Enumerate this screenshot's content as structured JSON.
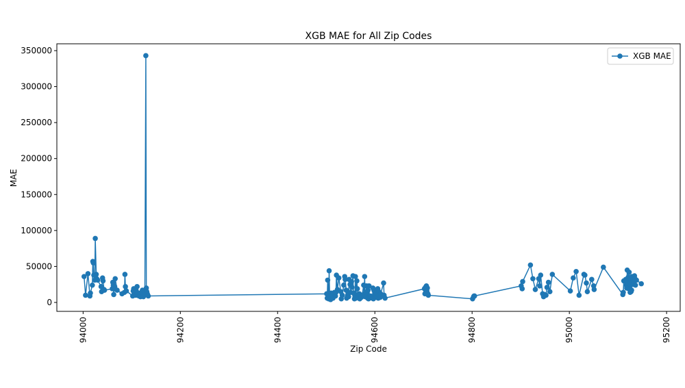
{
  "chart_data": {
    "type": "line",
    "title": "XGB MAE for All Zip Codes",
    "x_label": "Zip Code",
    "y_label": "MAE",
    "legend": "upper right",
    "xlim": [
      93946,
      95228
    ],
    "xticks": [
      94000,
      94200,
      94400,
      94600,
      94800,
      95000,
      95200
    ],
    "ylim": [
      -12400,
      359500
    ],
    "yticks": [
      0,
      50000,
      100000,
      150000,
      200000,
      250000,
      300000,
      350000
    ],
    "series": [
      {
        "name": "XGB MAE",
        "color": "#1f77b4",
        "x": [
          94002,
          94005,
          94010,
          94014,
          94015,
          94019,
          94020,
          94021,
          94022,
          94024,
          94025,
          94027,
          94028,
          94030,
          94037,
          94038,
          94040,
          94041,
          94043,
          94044,
          94060,
          94061,
          94062,
          94063,
          94065,
          94066,
          94070,
          94080,
          94085,
          94086,
          94087,
          94089,
          94102,
          94103,
          94104,
          94105,
          94107,
          94108,
          94109,
          94110,
          94111,
          94112,
          94114,
          94115,
          94116,
          94117,
          94118,
          94121,
          94122,
          94123,
          94124,
          94127,
          94129,
          94130,
          94131,
          94132,
          94133,
          94134,
          94501,
          94502,
          94503,
          94505,
          94506,
          94507,
          94509,
          94510,
          94513,
          94514,
          94517,
          94518,
          94519,
          94520,
          94521,
          94523,
          94526,
          94530,
          94531,
          94533,
          94536,
          94538,
          94539,
          94541,
          94542,
          94544,
          94545,
          94546,
          94547,
          94549,
          94550,
          94551,
          94552,
          94553,
          94555,
          94556,
          94558,
          94559,
          94560,
          94561,
          94563,
          94564,
          94565,
          94566,
          94568,
          94569,
          94571,
          94572,
          94574,
          94577,
          94578,
          94579,
          94580,
          94582,
          94583,
          94585,
          94586,
          94587,
          94588,
          94589,
          94590,
          94591,
          94595,
          94596,
          94597,
          94598,
          94601,
          94602,
          94603,
          94605,
          94606,
          94607,
          94608,
          94609,
          94610,
          94611,
          94612,
          94618,
          94619,
          94621,
          94702,
          94703,
          94704,
          94705,
          94706,
          94707,
          94708,
          94709,
          94710,
          94801,
          94803,
          94804,
          94805,
          94901,
          94903,
          94904,
          94920,
          94925,
          94930,
          94937,
          94939,
          94941,
          94945,
          94947,
          94949,
          94952,
          94954,
          94957,
          94960,
          94965,
          95002,
          95008,
          95014,
          95020,
          95030,
          95032,
          95035,
          95037,
          95046,
          95050,
          95051,
          95070,
          95110,
          95111,
          95112,
          95116,
          95117,
          95118,
          95119,
          95120,
          95121,
          95122,
          95123,
          95124,
          95125,
          95126,
          95127,
          95128,
          95129,
          95130,
          95131,
          95132,
          95133,
          95134,
          95135,
          95136,
          95138,
          95148
        ],
        "values": [
          36000,
          10000,
          40000,
          9000,
          13000,
          24000,
          57000,
          55000,
          38000,
          31000,
          89000,
          39000,
          33000,
          31000,
          22000,
          15000,
          34000,
          30000,
          18000,
          17000,
          19000,
          28000,
          24000,
          11000,
          22000,
          33000,
          17000,
          12000,
          14000,
          39000,
          22000,
          16000,
          9000,
          16000,
          19000,
          12000,
          14000,
          10000,
          17000,
          11000,
          22000,
          10000,
          13000,
          9000,
          12000,
          11000,
          8000,
          15000,
          17000,
          13000,
          8000,
          12000,
          343000,
          20000,
          15000,
          12000,
          10000,
          9000,
          12000,
          6000,
          31000,
          5000,
          44000,
          10000,
          4000,
          13000,
          11000,
          6000,
          14000,
          12000,
          9000,
          14000,
          38000,
          18000,
          34000,
          15000,
          5000,
          10000,
          24000,
          36000,
          32000,
          17000,
          6000,
          10000,
          13000,
          8000,
          32000,
          25000,
          14000,
          27000,
          29000,
          21000,
          37000,
          13000,
          5000,
          9000,
          36000,
          6000,
          30000,
          19000,
          10000,
          11000,
          12000,
          5000,
          8000,
          7000,
          10000,
          24000,
          12000,
          36000,
          8000,
          14000,
          23000,
          6000,
          17000,
          5000,
          23000,
          6000,
          8000,
          9000,
          6000,
          20000,
          5000,
          17000,
          12000,
          7000,
          13000,
          7000,
          19000,
          6000,
          15000,
          9000,
          11000,
          7000,
          12000,
          27000,
          10000,
          6000,
          19000,
          12000,
          21000,
          15000,
          23000,
          16000,
          20000,
          12000,
          10000,
          5000,
          8000,
          9000,
          9000,
          23000,
          19000,
          29000,
          52000,
          33000,
          18000,
          33000,
          23000,
          38000,
          12000,
          8000,
          11000,
          10000,
          21000,
          28000,
          15000,
          39000,
          16000,
          34000,
          43000,
          10000,
          39000,
          38000,
          27000,
          15000,
          32000,
          23000,
          18000,
          49000,
          11000,
          14000,
          30000,
          32000,
          24000,
          20000,
          45000,
          27000,
          35000,
          19000,
          42000,
          26000,
          14000,
          34000,
          15000,
          17000,
          36000,
          29000,
          25000,
          30000,
          35000,
          37000,
          33000,
          24000,
          31000,
          26000
        ]
      }
    ]
  }
}
